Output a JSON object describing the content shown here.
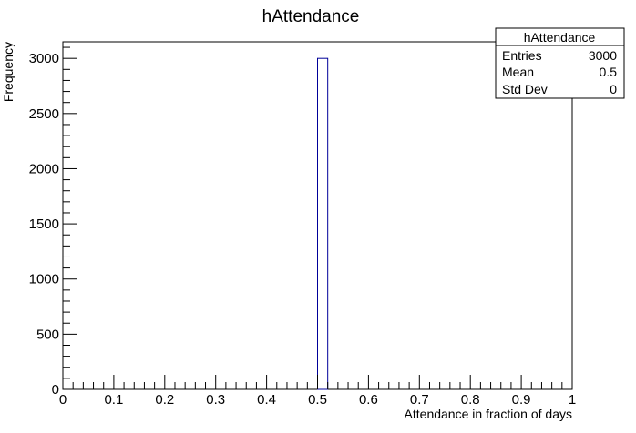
{
  "chart_data": {
    "type": "bar",
    "title": "hAttendance",
    "xlabel": "Attendance in fraction of days",
    "ylabel": "Frequency",
    "xlim": [
      0,
      1
    ],
    "ylim": [
      0,
      3150
    ],
    "bin_width": 0.02,
    "bins": [
      {
        "x_low": 0.5,
        "x_high": 0.52,
        "count": 3000
      }
    ],
    "x_ticks": [
      "0",
      "0.1",
      "0.2",
      "0.3",
      "0.4",
      "0.5",
      "0.6",
      "0.7",
      "0.8",
      "0.9",
      "1"
    ],
    "y_ticks": [
      "0",
      "500",
      "1000",
      "1500",
      "2000",
      "2500",
      "3000"
    ],
    "bar_color": "#000099",
    "grid": false,
    "stats_box": {
      "title": "hAttendance",
      "placement": "top-right",
      "rows": [
        {
          "label": "Entries",
          "value": "3000"
        },
        {
          "label": "Mean",
          "value": "0.5"
        },
        {
          "label": "Std Dev",
          "value": "0"
        }
      ]
    }
  }
}
